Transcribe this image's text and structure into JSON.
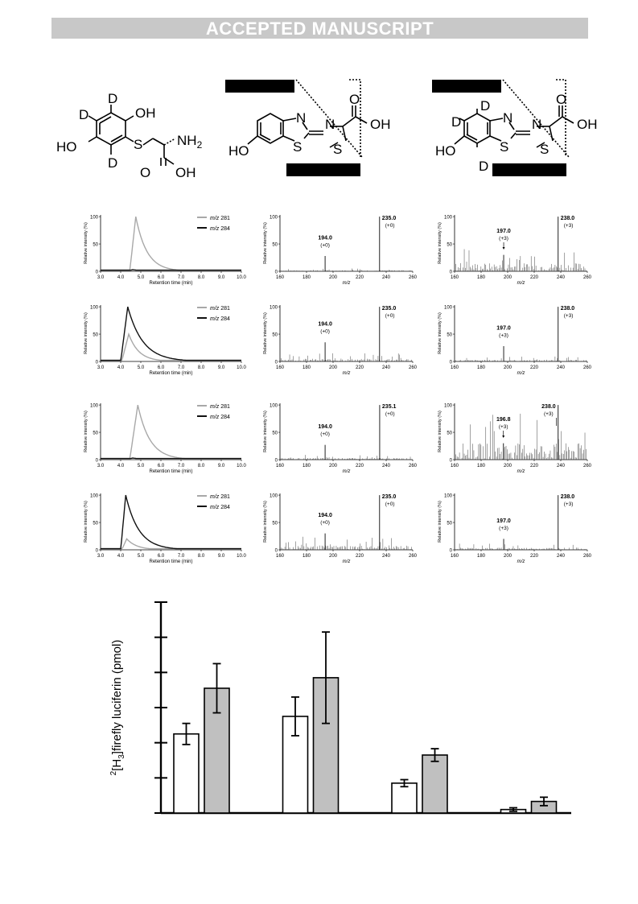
{
  "banner": "ACCEPTED MANUSCRIPT",
  "structures": {
    "s1": {
      "D_top": "D",
      "OH_top": "OH",
      "D_left": "D",
      "HO": "HO",
      "S": "S",
      "NH2": "NH",
      "NH2_sub": "2",
      "D_bottom": "D",
      "O": "O",
      "OH": "OH"
    },
    "s2": {
      "N1": "N",
      "N2": "N",
      "S1": "S",
      "S2": "S",
      "HO": "HO",
      "O": "O",
      "OH": "OH"
    },
    "s3": {
      "D_top": "D",
      "D_left": "D",
      "D_bottom": "D",
      "N1": "N",
      "N2": "N",
      "S1": "S",
      "S2": "S",
      "HO": "HO",
      "O": "O",
      "OH": "OH"
    }
  },
  "chromatograms": {
    "ylabel": "Relative intensity (%)",
    "xlabel": "Retention time (min)",
    "xticks": [
      "3.0",
      "4.0",
      "5.0",
      "6.0",
      "7.0",
      "8.0",
      "9.0",
      "10.0"
    ],
    "yticks": [
      "0",
      "50",
      "100"
    ],
    "legend": [
      {
        "italic": "m/z",
        "value": " 281",
        "color": "#a8a8a8"
      },
      {
        "italic": "m/z",
        "value": " 284",
        "color": "#111111"
      }
    ]
  },
  "spectra": {
    "ylabel": "Relative intensity (%)",
    "xlabel": "m/z",
    "xticks": [
      "160",
      "180",
      "200",
      "220",
      "240",
      "260"
    ],
    "yticks": [
      "0",
      "50",
      "100"
    ]
  },
  "rows": [
    {
      "ms_mid": {
        "main": "235.0",
        "main_shift": "(+0)",
        "frag": "194.0",
        "frag_shift": "(+0)"
      },
      "ms_right": {
        "main": "238.0",
        "main_shift": "(+3)",
        "frag": "197.0",
        "frag_shift": "(+3)"
      }
    },
    {
      "ms_mid": {
        "main": "235.0",
        "main_shift": "(+0)",
        "frag": "194.0",
        "frag_shift": "(+0)"
      },
      "ms_right": {
        "main": "238.0",
        "main_shift": "(+3)",
        "frag": "197.0",
        "frag_shift": "(+3)"
      }
    },
    {
      "ms_mid": {
        "main": "235.1",
        "main_shift": "(+0)",
        "frag": "194.0",
        "frag_shift": "(+0)"
      },
      "ms_right": {
        "main": "238.0",
        "main_shift": "(+3)",
        "frag": "196.8",
        "frag_shift": "(+3)"
      }
    },
    {
      "ms_mid": {
        "main": "235.0",
        "main_shift": "(+0)",
        "frag": "194.0",
        "frag_shift": "(+0)"
      },
      "ms_right": {
        "main": "238.0",
        "main_shift": "(+3)",
        "frag": "197.0",
        "frag_shift": "(+3)"
      }
    }
  ],
  "chart_data": {
    "type": "bar",
    "ylabel_sup": "2",
    "ylabel_pre": "[",
    "ylabel_h": "H",
    "ylabel_sub": "3",
    "ylabel_rest": "]firefly luciferin (pmol)",
    "ylim": [
      0,
      6
    ],
    "ytick_count": 7,
    "groups": 4,
    "series": [
      {
        "color": "#ffffff",
        "values": [
          2.25,
          2.75,
          0.85,
          0.1
        ],
        "errors": [
          0.3,
          0.55,
          0.1,
          0.05
        ]
      },
      {
        "color": "#c0c0c0",
        "values": [
          3.55,
          3.85,
          1.65,
          0.33
        ],
        "errors": [
          0.7,
          1.3,
          0.18,
          0.12
        ]
      }
    ],
    "grid": false
  }
}
